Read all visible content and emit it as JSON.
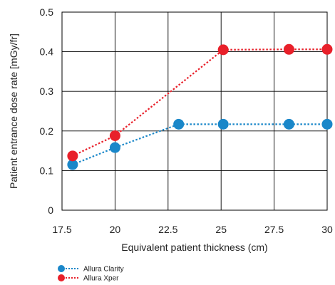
{
  "chart_data": {
    "type": "line",
    "xlabel": "Equivalent patient thickness (cm)",
    "ylabel": "Patient entrance dose rate  [mGy/fr]",
    "xlim": [
      17.5,
      30
    ],
    "ylim": [
      0,
      0.5
    ],
    "x_ticks": [
      "17.5",
      "20",
      "22.5",
      "25",
      "27.5",
      "30"
    ],
    "y_ticks": [
      "0",
      "0.1",
      "0.2",
      "0.3",
      "0.4",
      "0.5"
    ],
    "grid": true,
    "legend_position": "bottom-left",
    "series": [
      {
        "name": "Allura Clarity",
        "color": "#1a87c9",
        "points": [
          [
            18,
            0.115
          ],
          [
            20,
            0.158
          ],
          [
            23,
            0.217
          ],
          [
            25.1,
            0.217
          ],
          [
            28.2,
            0.217
          ],
          [
            30,
            0.217
          ]
        ]
      },
      {
        "name": "Allura Xper",
        "color": "#e8202a",
        "points": [
          [
            18,
            0.137
          ],
          [
            20,
            0.188
          ],
          [
            25.1,
            0.405
          ],
          [
            28.2,
            0.406
          ],
          [
            30,
            0.406
          ]
        ]
      }
    ]
  }
}
